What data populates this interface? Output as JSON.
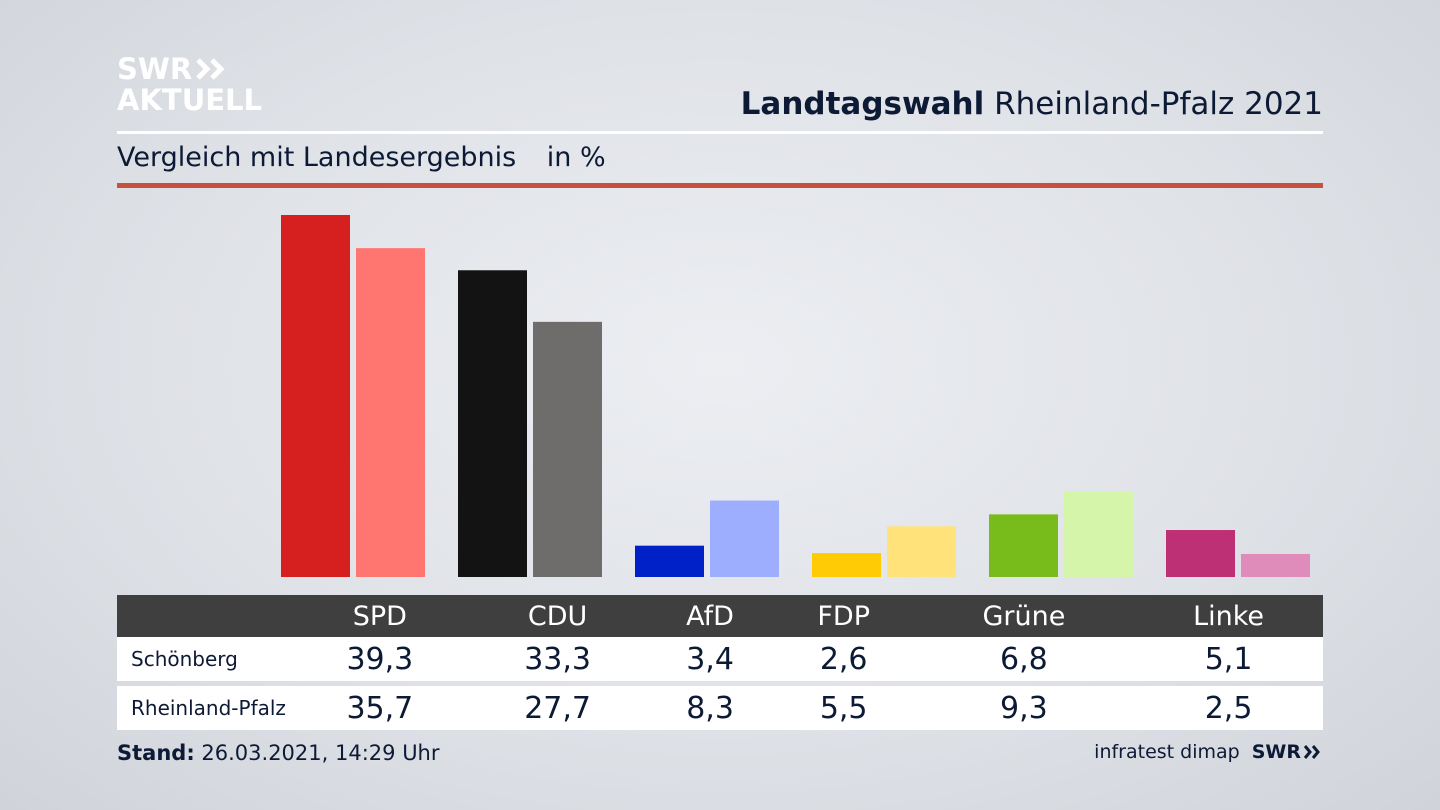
{
  "logo": {
    "line1": "SWR",
    "line2": "AKTUELL"
  },
  "header": {
    "title_bold": "Landtagswahl",
    "title_rest": "Rheinland-Pfalz 2021"
  },
  "subtitle": {
    "text": "Vergleich mit Landesergebnis",
    "unit": "in %"
  },
  "colors": {
    "rule_red": "#c8503f",
    "table_header": "#3f3f3f",
    "spd": [
      "#d62020",
      "#ff7570"
    ],
    "cdu": [
      "#131313",
      "#6e6d6c"
    ],
    "afd": [
      "#0021c8",
      "#9eaeff"
    ],
    "fdp": [
      "#ffcb05",
      "#ffe37a"
    ],
    "gruene": [
      "#78bc1b",
      "#d4f5aa"
    ],
    "linke": [
      "#bd3075",
      "#e08cbb"
    ]
  },
  "chart_data": {
    "type": "bar",
    "categories": [
      "SPD",
      "CDU",
      "AfD",
      "FDP",
      "Grüne",
      "Linke"
    ],
    "series": [
      {
        "name": "Schönberg",
        "values": [
          39.3,
          33.3,
          3.4,
          2.6,
          6.8,
          5.1
        ]
      },
      {
        "name": "Rheinland-Pfalz",
        "values": [
          35.7,
          27.7,
          8.3,
          5.5,
          9.3,
          2.5
        ]
      }
    ],
    "ylim": [
      0,
      40
    ],
    "grid": false,
    "legend": "table-below"
  },
  "table": {
    "headers": [
      "SPD",
      "CDU",
      "AfD",
      "FDP",
      "Grüne",
      "Linke"
    ],
    "rows": [
      {
        "label": "Schönberg",
        "values": [
          "39,3",
          "33,3",
          "3,4",
          "2,6",
          "6,8",
          "5,1"
        ]
      },
      {
        "label": "Rheinland-Pfalz",
        "values": [
          "35,7",
          "27,7",
          "8,3",
          "5,5",
          "9,3",
          "2,5"
        ]
      }
    ]
  },
  "footer": {
    "stand_label": "Stand:",
    "stand_value": "26.03.2021, 14:29 Uhr",
    "source": "infratest dimap",
    "brand": "SWR"
  }
}
